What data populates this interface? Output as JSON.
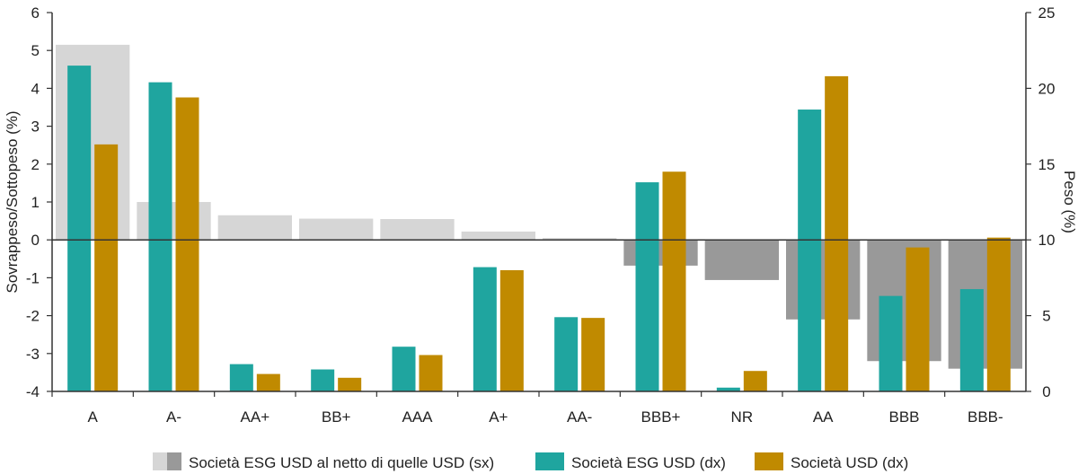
{
  "chart_data": {
    "type": "bar",
    "categories": [
      "A",
      "A-",
      "AA+",
      "BB+",
      "AAA",
      "A+",
      "AA-",
      "BBB+",
      "NR",
      "AA",
      "BBB",
      "BBB-"
    ],
    "y_left": {
      "label": "Sovrappeso/Sottopeso (%)",
      "ticks": [
        "6",
        "5",
        "4",
        "3",
        "2",
        "1",
        "0",
        "-1",
        "-2",
        "-3",
        "-4"
      ],
      "range": [
        -4,
        6
      ]
    },
    "y_right": {
      "label": "Peso (%)",
      "ticks": [
        "25",
        "20",
        "15",
        "10",
        "5",
        "0"
      ],
      "range": [
        0,
        25
      ]
    },
    "series": [
      {
        "name": "Società ESG USD al netto di quelle USD (sx)",
        "axis": "left",
        "values": [
          5.15,
          1.0,
          0.65,
          0.56,
          0.55,
          0.22,
          0.05,
          -0.68,
          -1.06,
          -2.1,
          -3.2,
          -3.4
        ]
      },
      {
        "name": "Società ESG USD (dx)",
        "axis": "right",
        "values": [
          21.5,
          20.4,
          1.8,
          1.45,
          2.95,
          8.2,
          4.9,
          13.8,
          0.25,
          18.6,
          6.3,
          6.75
        ]
      },
      {
        "name": "Società USD (dx)",
        "axis": "right",
        "values": [
          16.3,
          19.4,
          1.15,
          0.9,
          2.4,
          8.0,
          4.85,
          14.5,
          1.35,
          20.8,
          9.5,
          10.15
        ]
      }
    ],
    "colors": {
      "diff_positive": "#d6d6d6",
      "diff_negative": "#999999",
      "esg": "#1fa59f",
      "usd": "#c08a00"
    },
    "grid": false,
    "legend_position": "bottom"
  }
}
